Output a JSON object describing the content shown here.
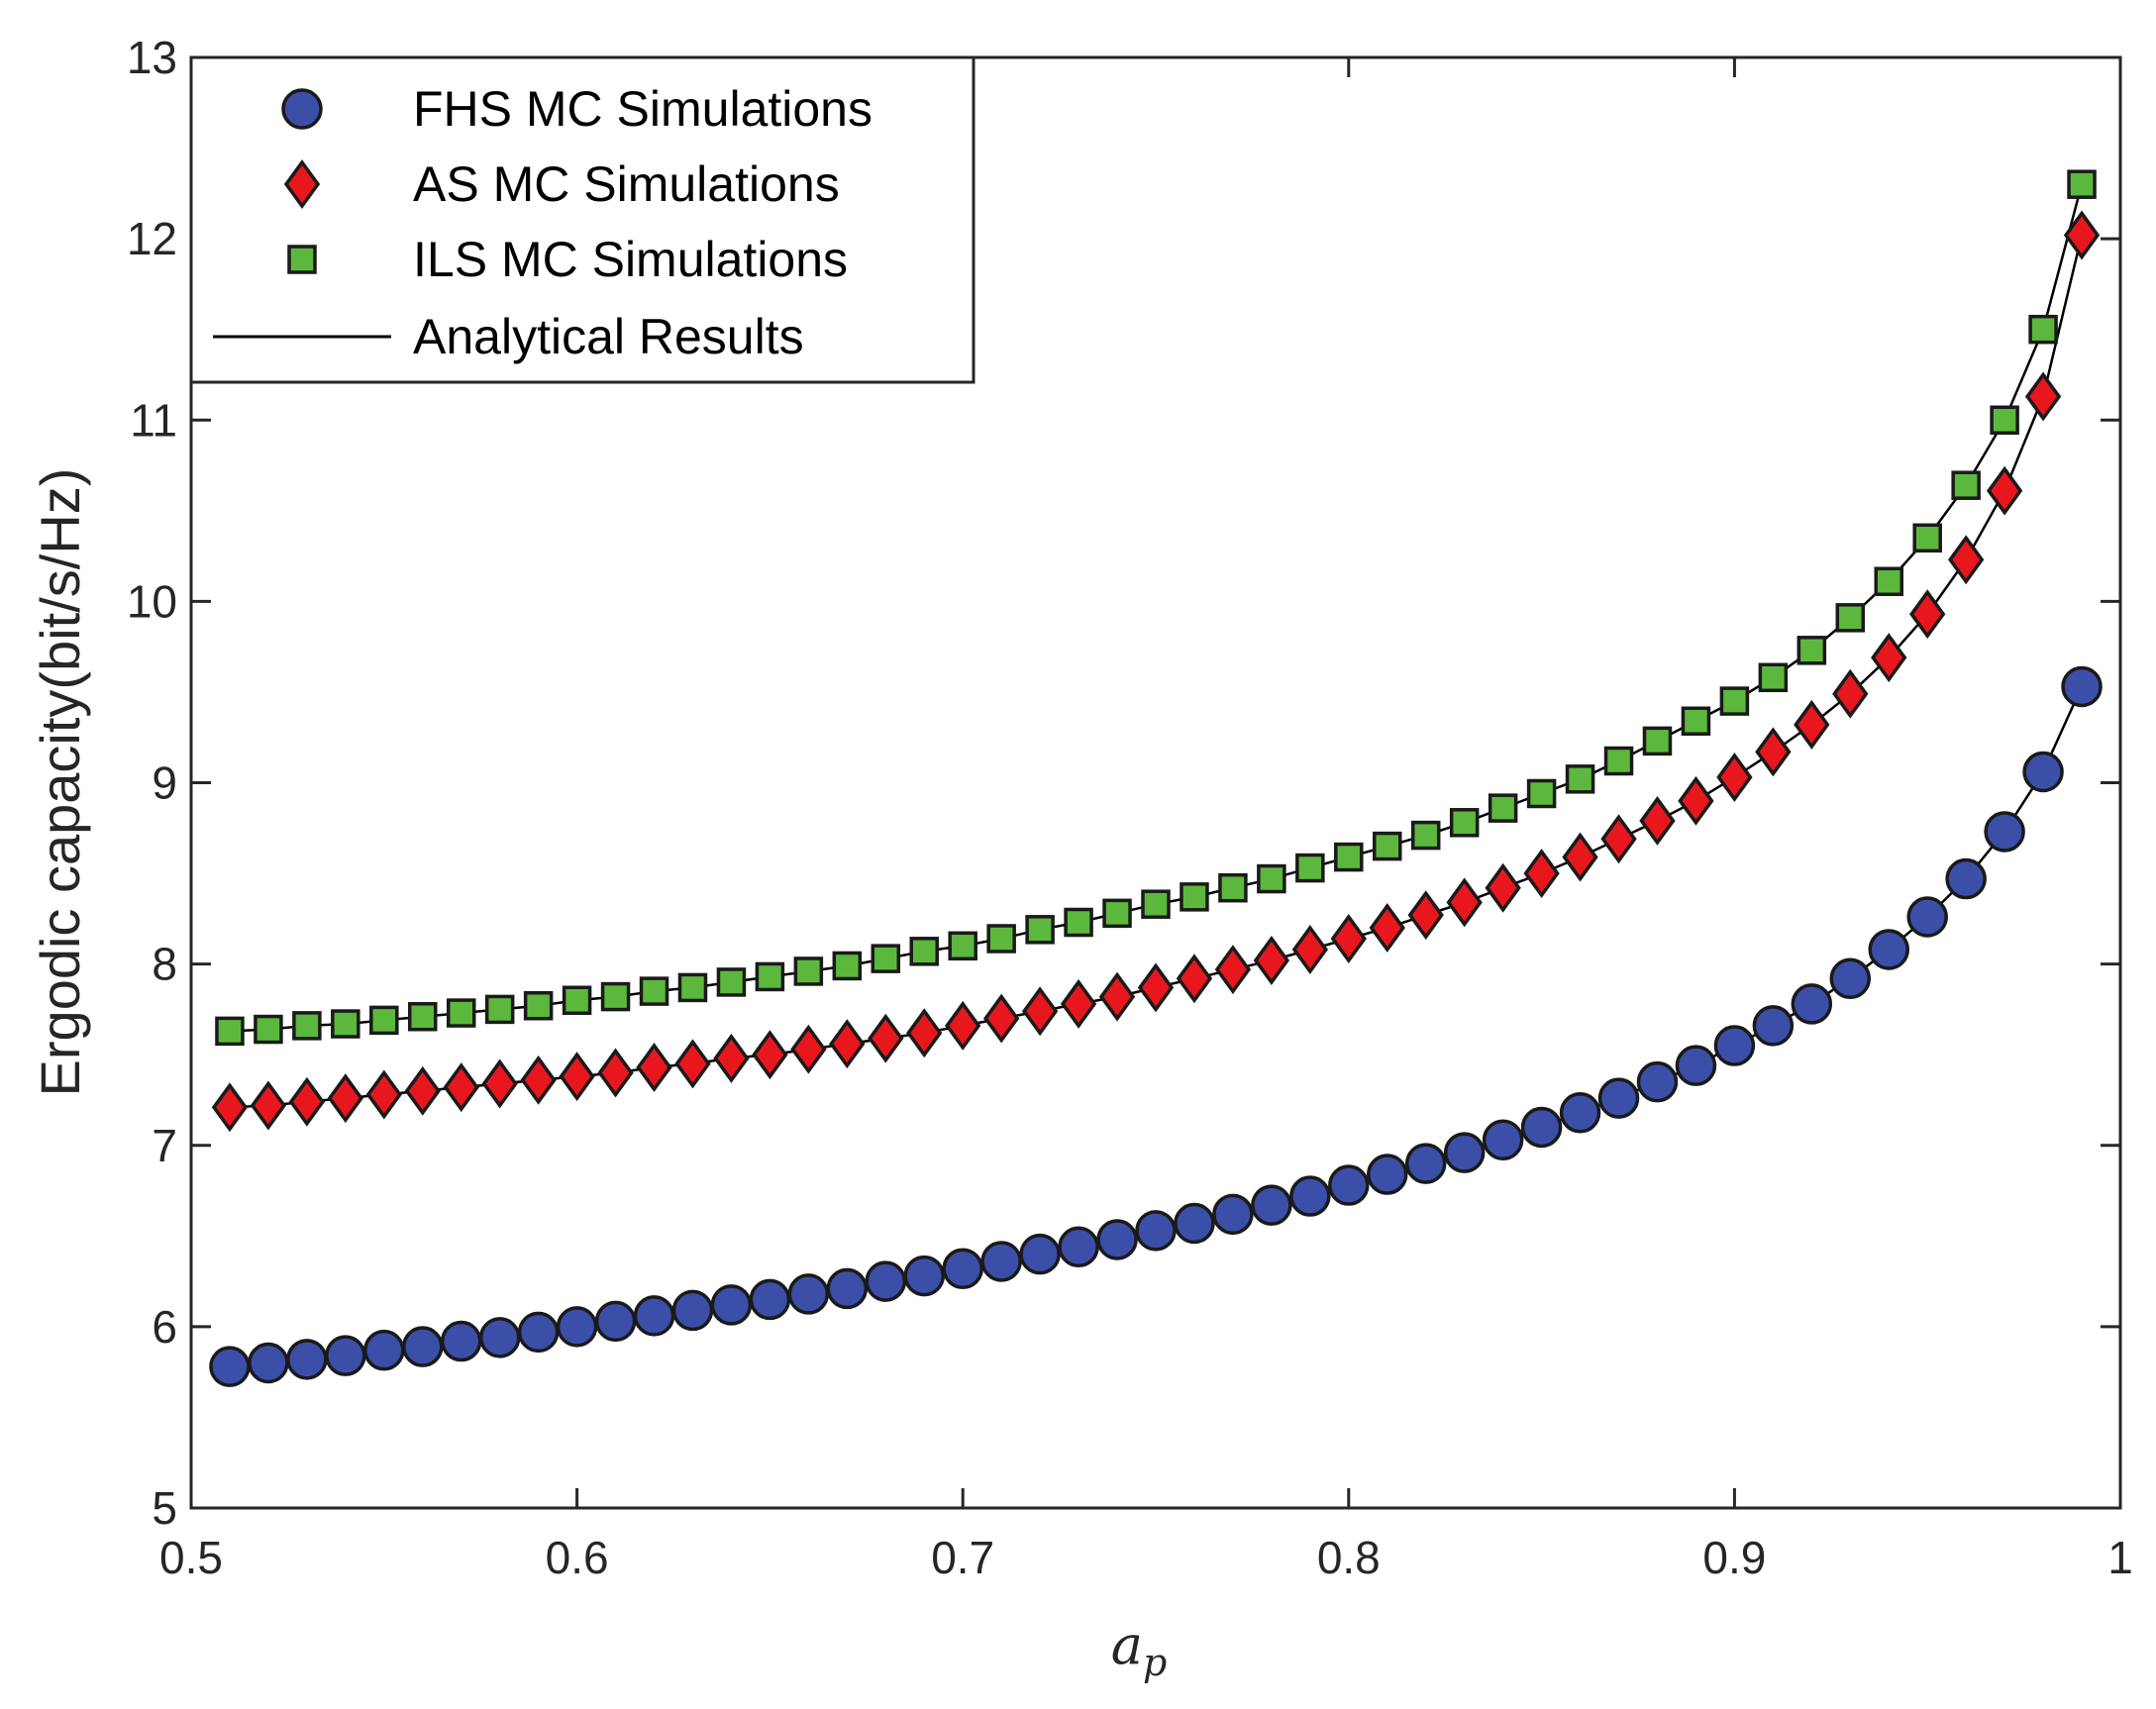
{
  "chart_data": {
    "type": "line",
    "title": "",
    "xlabel": "a_p",
    "xlabel_main": "a",
    "xlabel_sub": "p",
    "ylabel": "Ergodic capacity(bit/s/Hz)",
    "xlim": [
      0.5,
      1
    ],
    "ylim": [
      5,
      13
    ],
    "xticks": [
      0.5,
      0.6,
      0.7,
      0.8,
      0.9,
      1
    ],
    "xtick_labels": [
      "0.5",
      "0.6",
      "0.7",
      "0.8",
      "0.9",
      "1"
    ],
    "yticks": [
      5,
      6,
      7,
      8,
      9,
      10,
      11,
      12,
      13
    ],
    "ytick_labels": [
      "5",
      "6",
      "7",
      "8",
      "9",
      "10",
      "11",
      "12",
      "13"
    ],
    "grid": false,
    "legend_position": "top-left",
    "legend": [
      {
        "label": "FHS  MC Simulations",
        "marker": "circle",
        "color": "#3B4FA8"
      },
      {
        "label": "AS  MC Simulations",
        "marker": "diamond",
        "color": "#E8171E"
      },
      {
        "label": "ILS  MC Simulations",
        "marker": "square",
        "color": "#5CB83C"
      },
      {
        "label": "Analytical Results",
        "marker": "line",
        "color": "#000000"
      }
    ],
    "x": [
      0.51,
      0.52,
      0.53,
      0.54,
      0.55,
      0.56,
      0.57,
      0.58,
      0.59,
      0.6,
      0.61,
      0.62,
      0.63,
      0.64,
      0.65,
      0.66,
      0.67,
      0.68,
      0.69,
      0.7,
      0.71,
      0.72,
      0.73,
      0.74,
      0.75,
      0.76,
      0.77,
      0.78,
      0.79,
      0.8,
      0.81,
      0.82,
      0.83,
      0.84,
      0.85,
      0.86,
      0.87,
      0.88,
      0.89,
      0.9,
      0.91,
      0.92,
      0.93,
      0.94,
      0.95,
      0.96,
      0.97,
      0.98,
      0.99
    ],
    "series": [
      {
        "name": "FHS  MC Simulations",
        "marker": "circle",
        "color": "#3B4FA8",
        "values": [
          5.78,
          5.8,
          5.82,
          5.84,
          5.87,
          5.89,
          5.92,
          5.94,
          5.97,
          6.0,
          6.03,
          6.06,
          6.09,
          6.12,
          6.15,
          6.18,
          6.21,
          6.25,
          6.28,
          6.32,
          6.36,
          6.4,
          6.44,
          6.48,
          6.53,
          6.57,
          6.62,
          6.67,
          6.72,
          6.78,
          6.84,
          6.9,
          6.96,
          7.03,
          7.1,
          7.18,
          7.26,
          7.35,
          7.44,
          7.55,
          7.66,
          7.78,
          7.92,
          8.08,
          8.26,
          8.47,
          8.73,
          9.06,
          9.53
        ]
      },
      {
        "name": "AS  MC Simulations",
        "marker": "diamond",
        "color": "#E8171E",
        "values": [
          7.21,
          7.22,
          7.24,
          7.26,
          7.28,
          7.3,
          7.32,
          7.34,
          7.36,
          7.38,
          7.4,
          7.43,
          7.45,
          7.48,
          7.5,
          7.53,
          7.56,
          7.59,
          7.62,
          7.66,
          7.7,
          7.74,
          7.78,
          7.82,
          7.87,
          7.92,
          7.97,
          8.02,
          8.08,
          8.14,
          8.2,
          8.27,
          8.34,
          8.42,
          8.5,
          8.59,
          8.69,
          8.79,
          8.9,
          9.03,
          9.17,
          9.32,
          9.49,
          9.69,
          9.93,
          10.23,
          10.61,
          11.13,
          12.02
        ]
      },
      {
        "name": "ILS  MC Simulations",
        "marker": "square",
        "color": "#5CB83C",
        "values": [
          7.63,
          7.64,
          7.66,
          7.67,
          7.69,
          7.71,
          7.73,
          7.75,
          7.77,
          7.8,
          7.82,
          7.85,
          7.87,
          7.9,
          7.93,
          7.96,
          7.99,
          8.03,
          8.07,
          8.1,
          8.14,
          8.19,
          8.23,
          8.28,
          8.33,
          8.37,
          8.42,
          8.47,
          8.53,
          8.59,
          8.65,
          8.71,
          8.78,
          8.86,
          8.94,
          9.02,
          9.12,
          9.23,
          9.34,
          9.45,
          9.58,
          9.73,
          9.91,
          10.11,
          10.35,
          10.64,
          11.0,
          11.5,
          12.3
        ]
      }
    ]
  }
}
